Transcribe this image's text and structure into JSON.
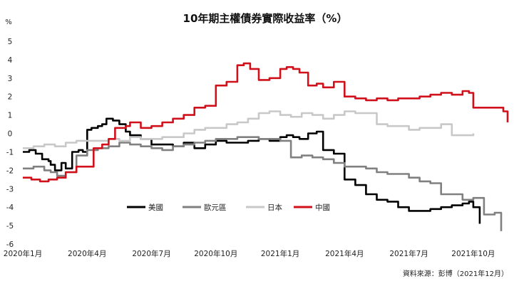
{
  "chart_data": {
    "type": "line",
    "title": "10年期主權債券實際收益率（%）",
    "unit_label": "%",
    "source": "資料來源：彭博（2021年12月）",
    "ylim": [
      -6,
      5
    ],
    "yticks": [
      5,
      4,
      3,
      2,
      1,
      0,
      -1,
      -2,
      -3,
      -4,
      -5,
      -6
    ],
    "xlim": [
      0,
      22.6
    ],
    "xticks": [
      {
        "label": "2020年1月",
        "pos": 0
      },
      {
        "label": "2020年4月",
        "pos": 3
      },
      {
        "label": "2020年7月",
        "pos": 6
      },
      {
        "label": "2020年10月",
        "pos": 9
      },
      {
        "label": "2021年1月",
        "pos": 12
      },
      {
        "label": "2021年4月",
        "pos": 15
      },
      {
        "label": "2021年7月",
        "pos": 18
      },
      {
        "label": "2021年10月",
        "pos": 21
      }
    ],
    "legend_position": "lower-center",
    "series": [
      {
        "name": "美國",
        "color": "#000000",
        "x": [
          0.0,
          0.3,
          0.6,
          0.9,
          1.2,
          1.3,
          1.5,
          1.8,
          2.0,
          2.3,
          2.6,
          2.8,
          3.0,
          3.2,
          3.5,
          3.7,
          3.9,
          4.2,
          4.5,
          4.8,
          5.0,
          5.5,
          6.0,
          6.5,
          7.0,
          7.5,
          8.0,
          8.5,
          9.0,
          9.5,
          10.0,
          10.5,
          11.0,
          11.5,
          12.0,
          12.3,
          12.6,
          12.9,
          13.3,
          13.7,
          14.0,
          14.5,
          15.0,
          15.5,
          16.0,
          16.5,
          17.0,
          17.5,
          18.0,
          18.5,
          19.0,
          19.5,
          20.0,
          20.5,
          20.8,
          21.0,
          21.3
        ],
        "y": [
          -1.0,
          -0.9,
          -1.1,
          -1.4,
          -1.5,
          -1.7,
          -2.0,
          -1.6,
          -1.9,
          -1.0,
          -0.9,
          -1.0,
          0.2,
          0.3,
          0.4,
          0.5,
          0.8,
          0.7,
          0.5,
          0.1,
          -0.1,
          -0.3,
          -0.6,
          -0.6,
          -0.7,
          -0.5,
          -0.8,
          -0.6,
          -0.4,
          -0.5,
          -0.5,
          -0.4,
          -0.3,
          -0.4,
          -0.2,
          -0.1,
          -0.2,
          -0.3,
          0.0,
          0.1,
          -0.9,
          -1.1,
          -2.5,
          -2.8,
          -3.3,
          -3.6,
          -3.7,
          -4.0,
          -4.2,
          -4.2,
          -4.1,
          -4.0,
          -3.9,
          -3.8,
          -3.7,
          -4.0,
          -4.9
        ]
      },
      {
        "name": "歐元區",
        "color": "#808080",
        "x": [
          0.0,
          0.5,
          1.0,
          1.3,
          1.6,
          2.0,
          2.5,
          3.0,
          3.5,
          4.0,
          4.5,
          5.0,
          5.5,
          6.0,
          6.5,
          7.0,
          7.5,
          8.0,
          8.5,
          9.0,
          9.5,
          10.0,
          10.5,
          11.0,
          11.5,
          12.0,
          12.5,
          13.0,
          13.5,
          14.0,
          14.5,
          15.0,
          15.5,
          16.0,
          16.5,
          17.0,
          17.5,
          18.0,
          18.5,
          19.0,
          19.5,
          20.0,
          20.5,
          21.0,
          21.5,
          22.0,
          22.3
        ],
        "y": [
          -1.9,
          -1.8,
          -2.0,
          -2.1,
          -2.3,
          -2.1,
          -1.2,
          -0.9,
          -0.8,
          -0.7,
          -0.5,
          -0.6,
          -0.7,
          -0.8,
          -0.9,
          -0.7,
          -0.6,
          -0.5,
          -0.4,
          -0.3,
          -0.3,
          -0.2,
          -0.2,
          -0.3,
          -0.3,
          -0.4,
          -1.3,
          -1.2,
          -1.3,
          -1.4,
          -1.6,
          -1.8,
          -1.8,
          -1.9,
          -2.1,
          -2.2,
          -2.2,
          -2.4,
          -2.6,
          -2.7,
          -3.3,
          -3.3,
          -3.6,
          -3.5,
          -4.4,
          -4.3,
          -5.3
        ]
      },
      {
        "name": "日本",
        "color": "#c8c8c8",
        "x": [
          0.0,
          0.5,
          1.0,
          1.5,
          2.0,
          2.5,
          3.0,
          3.5,
          4.0,
          4.5,
          5.0,
          5.5,
          6.0,
          6.5,
          7.0,
          7.5,
          8.0,
          8.5,
          9.0,
          9.5,
          10.0,
          10.5,
          11.0,
          11.5,
          12.0,
          12.5,
          13.0,
          13.5,
          14.0,
          14.5,
          15.0,
          15.5,
          16.0,
          16.5,
          17.0,
          17.5,
          18.0,
          18.5,
          19.0,
          19.5,
          20.0,
          20.5,
          21.0
        ],
        "y": [
          -0.8,
          -0.7,
          -0.6,
          -0.7,
          -0.5,
          -0.4,
          -0.4,
          -0.4,
          -0.3,
          -0.4,
          -0.2,
          -0.3,
          -0.3,
          -0.2,
          -0.2,
          0.0,
          0.2,
          0.3,
          0.3,
          0.5,
          0.6,
          0.8,
          1.1,
          1.2,
          1.0,
          0.9,
          1.1,
          1.0,
          0.8,
          1.0,
          1.2,
          1.1,
          1.1,
          0.5,
          0.4,
          0.4,
          0.2,
          0.3,
          0.3,
          0.5,
          -0.1,
          -0.1,
          0.0
        ]
      },
      {
        "name": "中國",
        "color": "#d0101a",
        "x": [
          0.0,
          0.4,
          0.8,
          1.2,
          1.6,
          2.0,
          2.5,
          3.0,
          3.3,
          3.7,
          4.0,
          4.3,
          4.8,
          5.0,
          5.5,
          6.0,
          6.5,
          7.0,
          7.5,
          8.0,
          8.5,
          9.0,
          9.5,
          10.0,
          10.3,
          10.6,
          11.0,
          11.5,
          12.0,
          12.3,
          12.6,
          12.9,
          13.3,
          13.7,
          14.0,
          14.5,
          15.0,
          15.5,
          16.0,
          16.5,
          17.0,
          17.5,
          18.0,
          18.5,
          19.0,
          19.5,
          20.0,
          20.5,
          20.8,
          21.0,
          21.5,
          22.0,
          22.4,
          22.6
        ],
        "y": [
          -2.4,
          -2.5,
          -2.6,
          -2.5,
          -2.4,
          -2.1,
          -1.8,
          -1.8,
          -0.8,
          -0.6,
          -0.3,
          0.3,
          0.4,
          0.6,
          0.3,
          0.4,
          0.6,
          0.8,
          1.0,
          1.4,
          1.5,
          2.6,
          2.8,
          3.7,
          3.8,
          3.5,
          2.9,
          3.0,
          3.5,
          3.6,
          3.5,
          3.3,
          2.6,
          2.7,
          2.5,
          2.8,
          2.0,
          1.9,
          1.8,
          1.9,
          1.8,
          1.9,
          1.9,
          2.0,
          2.1,
          2.2,
          2.1,
          2.3,
          2.2,
          1.4,
          1.4,
          1.4,
          1.2,
          0.6
        ]
      }
    ]
  }
}
